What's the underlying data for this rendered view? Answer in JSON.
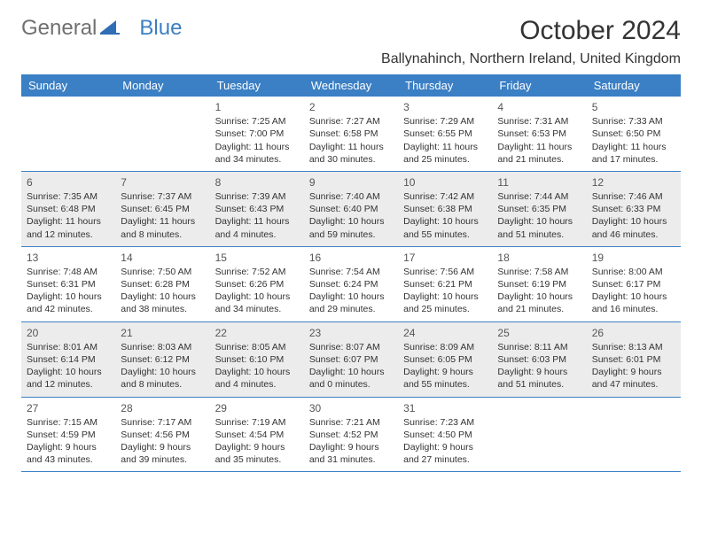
{
  "brand": {
    "gray": "General",
    "blue": "Blue"
  },
  "title": "October 2024",
  "location": "Ballynahinch, Northern Ireland, United Kingdom",
  "colors": {
    "header_bg": "#3b7fc4",
    "header_text": "#ffffff",
    "row_border": "#3b7fc4",
    "alt_bg": "#ececec",
    "body_text": "#333333",
    "logo_gray": "#707070",
    "logo_blue": "#3b7fc4"
  },
  "typography": {
    "title_fontsize": 30,
    "location_fontsize": 16,
    "dayheader_fontsize": 13,
    "daynum_fontsize": 12,
    "cell_fontsize": 10.5
  },
  "day_headers": [
    "Sunday",
    "Monday",
    "Tuesday",
    "Wednesday",
    "Thursday",
    "Friday",
    "Saturday"
  ],
  "weeks": [
    {
      "alt": false,
      "cells": [
        {
          "empty": true
        },
        {
          "empty": true
        },
        {
          "day": "1",
          "sunrise": "Sunrise: 7:25 AM",
          "sunset": "Sunset: 7:00 PM",
          "daylight": "Daylight: 11 hours and 34 minutes."
        },
        {
          "day": "2",
          "sunrise": "Sunrise: 7:27 AM",
          "sunset": "Sunset: 6:58 PM",
          "daylight": "Daylight: 11 hours and 30 minutes."
        },
        {
          "day": "3",
          "sunrise": "Sunrise: 7:29 AM",
          "sunset": "Sunset: 6:55 PM",
          "daylight": "Daylight: 11 hours and 25 minutes."
        },
        {
          "day": "4",
          "sunrise": "Sunrise: 7:31 AM",
          "sunset": "Sunset: 6:53 PM",
          "daylight": "Daylight: 11 hours and 21 minutes."
        },
        {
          "day": "5",
          "sunrise": "Sunrise: 7:33 AM",
          "sunset": "Sunset: 6:50 PM",
          "daylight": "Daylight: 11 hours and 17 minutes."
        }
      ]
    },
    {
      "alt": true,
      "cells": [
        {
          "day": "6",
          "sunrise": "Sunrise: 7:35 AM",
          "sunset": "Sunset: 6:48 PM",
          "daylight": "Daylight: 11 hours and 12 minutes."
        },
        {
          "day": "7",
          "sunrise": "Sunrise: 7:37 AM",
          "sunset": "Sunset: 6:45 PM",
          "daylight": "Daylight: 11 hours and 8 minutes."
        },
        {
          "day": "8",
          "sunrise": "Sunrise: 7:39 AM",
          "sunset": "Sunset: 6:43 PM",
          "daylight": "Daylight: 11 hours and 4 minutes."
        },
        {
          "day": "9",
          "sunrise": "Sunrise: 7:40 AM",
          "sunset": "Sunset: 6:40 PM",
          "daylight": "Daylight: 10 hours and 59 minutes."
        },
        {
          "day": "10",
          "sunrise": "Sunrise: 7:42 AM",
          "sunset": "Sunset: 6:38 PM",
          "daylight": "Daylight: 10 hours and 55 minutes."
        },
        {
          "day": "11",
          "sunrise": "Sunrise: 7:44 AM",
          "sunset": "Sunset: 6:35 PM",
          "daylight": "Daylight: 10 hours and 51 minutes."
        },
        {
          "day": "12",
          "sunrise": "Sunrise: 7:46 AM",
          "sunset": "Sunset: 6:33 PM",
          "daylight": "Daylight: 10 hours and 46 minutes."
        }
      ]
    },
    {
      "alt": false,
      "cells": [
        {
          "day": "13",
          "sunrise": "Sunrise: 7:48 AM",
          "sunset": "Sunset: 6:31 PM",
          "daylight": "Daylight: 10 hours and 42 minutes."
        },
        {
          "day": "14",
          "sunrise": "Sunrise: 7:50 AM",
          "sunset": "Sunset: 6:28 PM",
          "daylight": "Daylight: 10 hours and 38 minutes."
        },
        {
          "day": "15",
          "sunrise": "Sunrise: 7:52 AM",
          "sunset": "Sunset: 6:26 PM",
          "daylight": "Daylight: 10 hours and 34 minutes."
        },
        {
          "day": "16",
          "sunrise": "Sunrise: 7:54 AM",
          "sunset": "Sunset: 6:24 PM",
          "daylight": "Daylight: 10 hours and 29 minutes."
        },
        {
          "day": "17",
          "sunrise": "Sunrise: 7:56 AM",
          "sunset": "Sunset: 6:21 PM",
          "daylight": "Daylight: 10 hours and 25 minutes."
        },
        {
          "day": "18",
          "sunrise": "Sunrise: 7:58 AM",
          "sunset": "Sunset: 6:19 PM",
          "daylight": "Daylight: 10 hours and 21 minutes."
        },
        {
          "day": "19",
          "sunrise": "Sunrise: 8:00 AM",
          "sunset": "Sunset: 6:17 PM",
          "daylight": "Daylight: 10 hours and 16 minutes."
        }
      ]
    },
    {
      "alt": true,
      "cells": [
        {
          "day": "20",
          "sunrise": "Sunrise: 8:01 AM",
          "sunset": "Sunset: 6:14 PM",
          "daylight": "Daylight: 10 hours and 12 minutes."
        },
        {
          "day": "21",
          "sunrise": "Sunrise: 8:03 AM",
          "sunset": "Sunset: 6:12 PM",
          "daylight": "Daylight: 10 hours and 8 minutes."
        },
        {
          "day": "22",
          "sunrise": "Sunrise: 8:05 AM",
          "sunset": "Sunset: 6:10 PM",
          "daylight": "Daylight: 10 hours and 4 minutes."
        },
        {
          "day": "23",
          "sunrise": "Sunrise: 8:07 AM",
          "sunset": "Sunset: 6:07 PM",
          "daylight": "Daylight: 10 hours and 0 minutes."
        },
        {
          "day": "24",
          "sunrise": "Sunrise: 8:09 AM",
          "sunset": "Sunset: 6:05 PM",
          "daylight": "Daylight: 9 hours and 55 minutes."
        },
        {
          "day": "25",
          "sunrise": "Sunrise: 8:11 AM",
          "sunset": "Sunset: 6:03 PM",
          "daylight": "Daylight: 9 hours and 51 minutes."
        },
        {
          "day": "26",
          "sunrise": "Sunrise: 8:13 AM",
          "sunset": "Sunset: 6:01 PM",
          "daylight": "Daylight: 9 hours and 47 minutes."
        }
      ]
    },
    {
      "alt": false,
      "cells": [
        {
          "day": "27",
          "sunrise": "Sunrise: 7:15 AM",
          "sunset": "Sunset: 4:59 PM",
          "daylight": "Daylight: 9 hours and 43 minutes."
        },
        {
          "day": "28",
          "sunrise": "Sunrise: 7:17 AM",
          "sunset": "Sunset: 4:56 PM",
          "daylight": "Daylight: 9 hours and 39 minutes."
        },
        {
          "day": "29",
          "sunrise": "Sunrise: 7:19 AM",
          "sunset": "Sunset: 4:54 PM",
          "daylight": "Daylight: 9 hours and 35 minutes."
        },
        {
          "day": "30",
          "sunrise": "Sunrise: 7:21 AM",
          "sunset": "Sunset: 4:52 PM",
          "daylight": "Daylight: 9 hours and 31 minutes."
        },
        {
          "day": "31",
          "sunrise": "Sunrise: 7:23 AM",
          "sunset": "Sunset: 4:50 PM",
          "daylight": "Daylight: 9 hours and 27 minutes."
        },
        {
          "empty": true
        },
        {
          "empty": true
        }
      ]
    }
  ]
}
